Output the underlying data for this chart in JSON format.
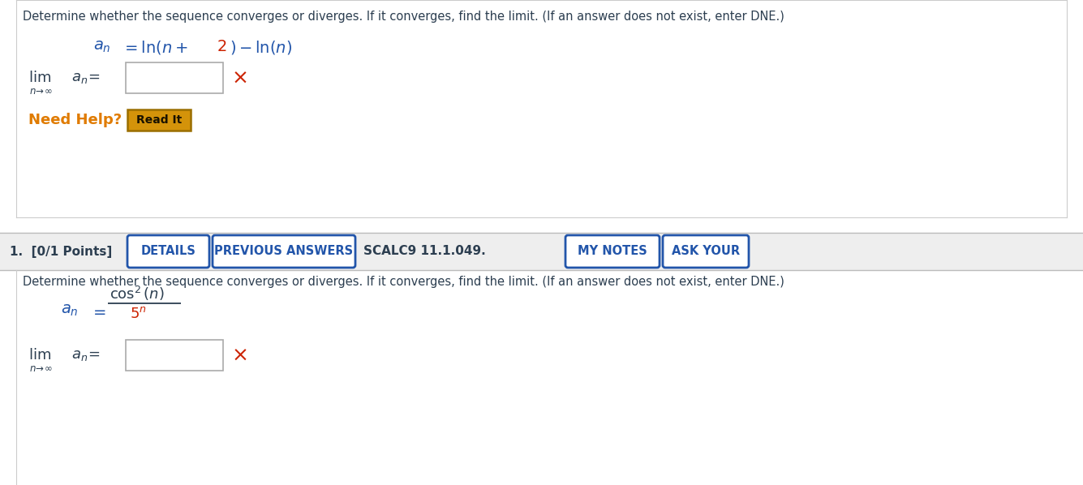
{
  "bg_color": "#ffffff",
  "text_color_dark": "#2c3e50",
  "text_color_blue": "#2255aa",
  "text_color_orange": "#e07b00",
  "text_color_red": "#cc2200",
  "border_color": "#cccccc",
  "button_border_blue": "#2255aa",
  "button_bg_orange": "#d4930a",
  "button_border_orange": "#9a6e00",
  "section1_instruction": "Determine whether the sequence converges or diverges. If it converges, find the limit. (If an answer does not exist, enter DNE.)",
  "section2_points_label": "1.  [0/1 Points]",
  "section2_btn1": "DETAILS",
  "section2_btn2": "PREVIOUS ANSWERS",
  "section2_label3": "SCALC9 11.1.049.",
  "section2_btn4": "MY NOTES",
  "section2_btn5": "ASK YOUR",
  "section2_instruction": "Determine whether the sequence converges or diverges. If it converges, find the limit. (If an answer does not exist, enter DNE.)"
}
